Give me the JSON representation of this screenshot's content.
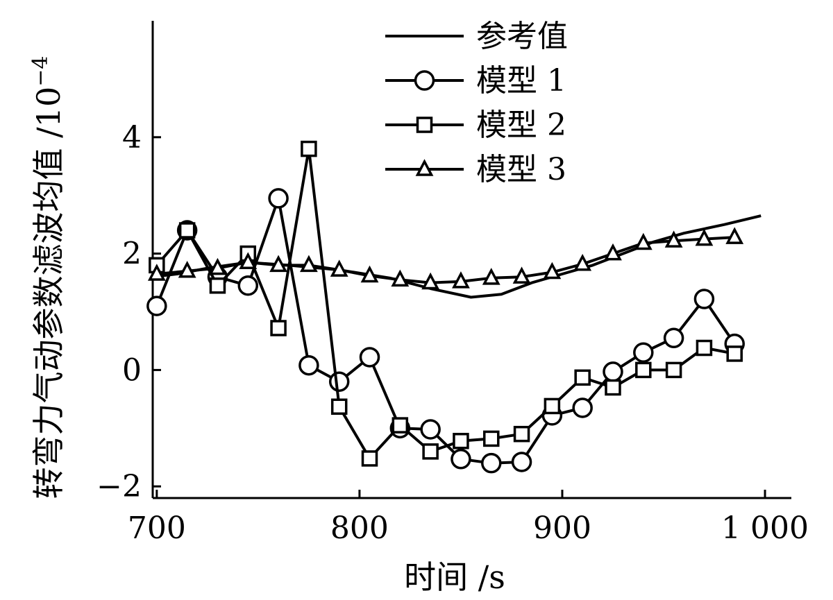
{
  "chart_data": {
    "type": "line",
    "xlabel": "时间 /s",
    "ylabel": "转弯力气动参数滤波均值 /10",
    "ylabel_exponent": "−4",
    "xlim": [
      698,
      1013
    ],
    "ylim": [
      -2.2,
      6.0
    ],
    "xticks": [
      700,
      800,
      900,
      1000
    ],
    "xtick_labels": [
      "700",
      "800",
      "900",
      "1 000"
    ],
    "yticks": [
      -2,
      0,
      2,
      4
    ],
    "ytick_labels": [
      "−2",
      "0",
      "2",
      "4"
    ],
    "legend_position": "top-center",
    "series": [
      {
        "name": "参考值",
        "marker": "none",
        "x": [
          698,
          710,
          725,
          745,
          765,
          790,
          815,
          835,
          855,
          870,
          885,
          900,
          915,
          930,
          945,
          960,
          980,
          998
        ],
        "y": [
          1.6,
          1.65,
          1.75,
          1.85,
          1.8,
          1.72,
          1.58,
          1.4,
          1.25,
          1.3,
          1.5,
          1.65,
          1.8,
          2.0,
          2.2,
          2.35,
          2.5,
          2.65
        ]
      },
      {
        "name": "模型 1",
        "marker": "circle",
        "x": [
          700,
          715,
          730,
          745,
          760,
          775,
          790,
          805,
          820,
          835,
          850,
          865,
          880,
          895,
          910,
          925,
          940,
          955,
          970,
          985
        ],
        "y": [
          1.1,
          2.4,
          1.6,
          1.45,
          2.95,
          0.08,
          -0.2,
          0.22,
          -1.0,
          -1.02,
          -1.53,
          -1.6,
          -1.58,
          -0.78,
          -0.65,
          -0.03,
          0.3,
          0.55,
          1.22,
          0.45
        ]
      },
      {
        "name": "模型 2",
        "marker": "square",
        "x": [
          700,
          715,
          730,
          745,
          760,
          775,
          790,
          805,
          820,
          835,
          850,
          865,
          880,
          895,
          910,
          925,
          940,
          955,
          970,
          985
        ],
        "y": [
          1.8,
          2.4,
          1.45,
          2.0,
          0.72,
          3.8,
          -0.63,
          -1.52,
          -0.95,
          -1.4,
          -1.22,
          -1.18,
          -1.1,
          -0.62,
          -0.13,
          -0.3,
          0.0,
          0.0,
          0.38,
          0.28
        ]
      },
      {
        "name": "模型 3",
        "marker": "triangle",
        "x": [
          700,
          715,
          730,
          745,
          760,
          775,
          790,
          805,
          820,
          835,
          850,
          865,
          880,
          895,
          910,
          925,
          940,
          955,
          970,
          985
        ],
        "y": [
          1.65,
          1.7,
          1.75,
          1.85,
          1.8,
          1.8,
          1.72,
          1.62,
          1.55,
          1.5,
          1.52,
          1.58,
          1.6,
          1.68,
          1.82,
          2.0,
          2.18,
          2.22,
          2.25,
          2.28
        ]
      }
    ]
  }
}
